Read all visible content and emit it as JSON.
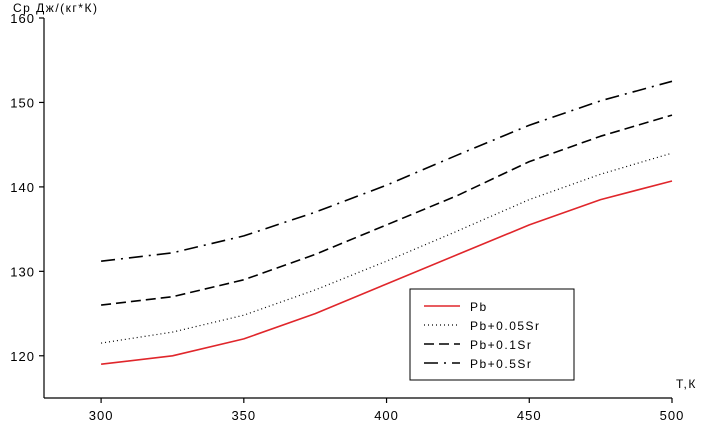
{
  "chart_data": {
    "type": "line",
    "ylabel": "Ср Дж/(кг*К)",
    "xlabel": "Т,К",
    "xlim": [
      280,
      500
    ],
    "ylim": [
      115,
      160
    ],
    "x_ticks": [
      300,
      350,
      400,
      450,
      500
    ],
    "y_ticks": [
      120,
      130,
      140,
      150,
      160
    ],
    "x_tick_labels": [
      "300",
      "350",
      "400",
      "450",
      "500"
    ],
    "y_tick_labels": [
      "120",
      "130",
      "140",
      "150",
      "160"
    ],
    "grid": false,
    "legend_position": "bottom-right",
    "series": [
      {
        "name": "Pb",
        "color": "#e0262b",
        "style": "solid",
        "x": [
          300,
          325,
          350,
          375,
          400,
          425,
          450,
          475,
          500
        ],
        "values": [
          119.0,
          120.0,
          122.0,
          125.0,
          128.5,
          132.0,
          135.5,
          138.5,
          140.7
        ]
      },
      {
        "name": "Pb+0.05Sr",
        "color": "#000000",
        "style": "dotted",
        "x": [
          300,
          325,
          350,
          375,
          400,
          425,
          450,
          475,
          500
        ],
        "values": [
          121.5,
          122.8,
          124.8,
          127.8,
          131.2,
          134.8,
          138.5,
          141.5,
          144.0
        ]
      },
      {
        "name": "Pb+0.1Sr",
        "color": "#000000",
        "style": "dashed",
        "x": [
          300,
          325,
          350,
          375,
          400,
          425,
          450,
          475,
          500
        ],
        "values": [
          126.0,
          127.0,
          129.0,
          132.0,
          135.5,
          139.0,
          143.0,
          146.0,
          148.5
        ]
      },
      {
        "name": "Pb+0.5Sr",
        "color": "#000000",
        "style": "dash-dot",
        "x": [
          300,
          325,
          350,
          375,
          400,
          425,
          450,
          475,
          500
        ],
        "values": [
          131.2,
          132.2,
          134.2,
          137.0,
          140.2,
          143.8,
          147.3,
          150.2,
          152.5
        ]
      }
    ]
  }
}
